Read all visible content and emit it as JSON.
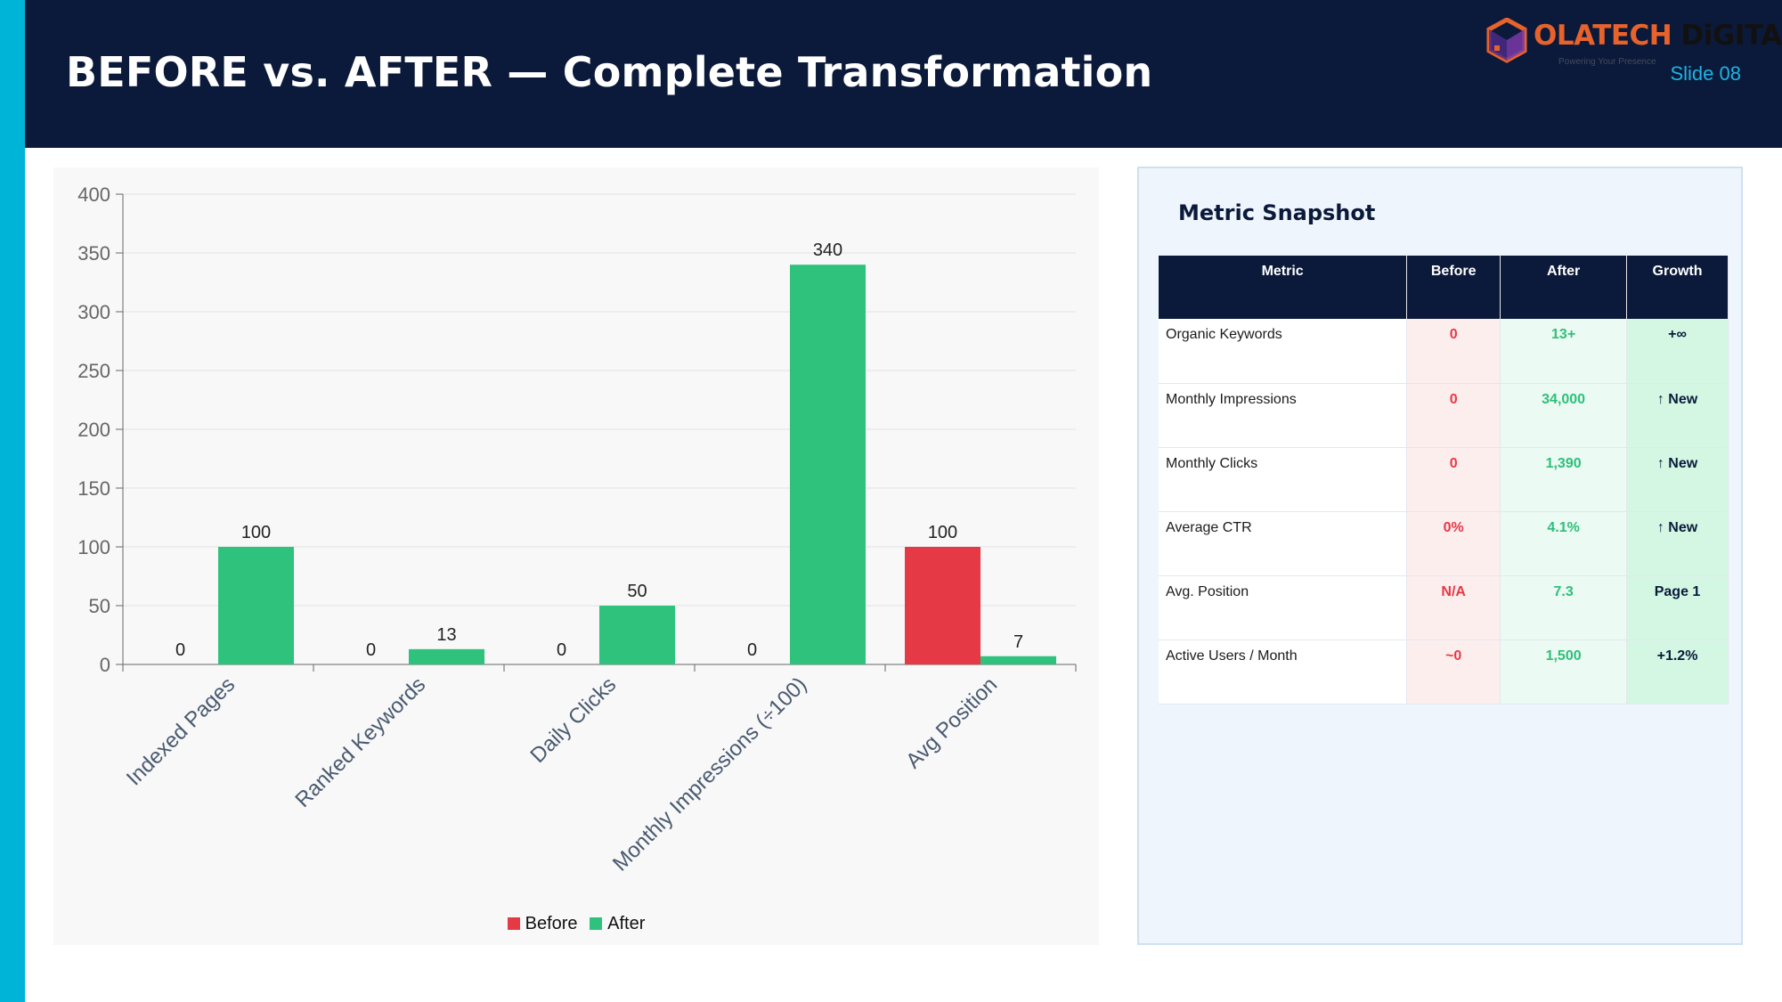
{
  "header": {
    "title": "BEFORE vs. AFTER — Complete Transformation",
    "slide": "Slide 08",
    "logo": {
      "text_part1": "OLATECH",
      "text_part2": "DiGITAL",
      "tagline": "Powering Your Presence"
    }
  },
  "colors": {
    "accent": "#00b4d8",
    "navy": "#0b1a3a",
    "before": "#e63946",
    "after": "#2fc27d"
  },
  "chart_data": {
    "type": "bar",
    "categories": [
      "Indexed Pages",
      "Ranked Keywords",
      "Daily Clicks",
      "Monthly Impressions (÷100)",
      "Avg Position"
    ],
    "series": [
      {
        "name": "Before",
        "values": [
          0,
          0,
          0,
          0,
          100
        ]
      },
      {
        "name": "After",
        "values": [
          100,
          13,
          50,
          340,
          7
        ]
      }
    ],
    "ylim": [
      0,
      400
    ],
    "yticks": [
      0,
      50,
      100,
      150,
      200,
      250,
      300,
      350,
      400
    ],
    "grid": true,
    "legend_position": "bottom"
  },
  "snapshot": {
    "title": "Metric Snapshot",
    "headers": [
      "Metric",
      "Before",
      "After",
      "Growth"
    ],
    "rows": [
      {
        "metric": "Organic Keywords",
        "before": "0",
        "after": "13+",
        "growth": "+∞"
      },
      {
        "metric": "Monthly Impressions",
        "before": "0",
        "after": "34,000",
        "growth": "↑ New"
      },
      {
        "metric": "Monthly Clicks",
        "before": "0",
        "after": "1,390",
        "growth": "↑ New"
      },
      {
        "metric": "Average CTR",
        "before": "0%",
        "after": "4.1%",
        "growth": "↑ New"
      },
      {
        "metric": "Avg. Position",
        "before": "N/A",
        "after": "7.3",
        "growth": "Page 1"
      },
      {
        "metric": "Active Users / Month",
        "before": "~0",
        "after": "1,500",
        "growth": "+1.2%"
      }
    ]
  }
}
